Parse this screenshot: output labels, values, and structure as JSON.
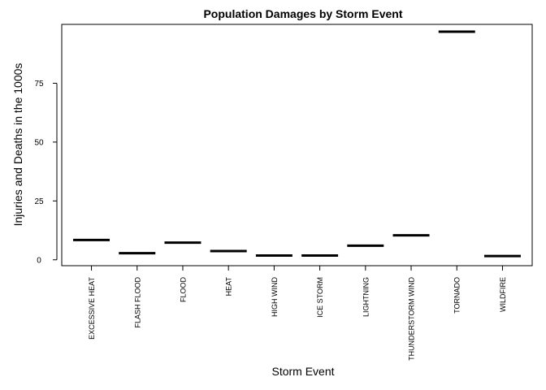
{
  "chart_data": {
    "type": "bar",
    "style": "horizontal segment per category (median line)",
    "title": "Population Damages by Storm Event",
    "xlabel": "Storm Event",
    "ylabel": "Injuries and Deaths in the 1000s",
    "ylim": [
      -2.5,
      100
    ],
    "yticks": [
      0,
      25,
      50,
      75
    ],
    "grid": false,
    "legend": "none",
    "categories": [
      "EXCESSIVE HEAT",
      "FLASH FLOOD",
      "FLOOD",
      "HEAT",
      "HIGH WIND",
      "ICE STORM",
      "LIGHTNING",
      "THUNDERSTORM WIND",
      "TORNADO",
      "WILDFIRE"
    ],
    "values": [
      8.4,
      2.8,
      7.3,
      3.7,
      1.8,
      1.8,
      6.0,
      10.4,
      96.9,
      1.6
    ],
    "colors": {
      "line": "#000000",
      "axis": "#000000",
      "background": "#ffffff"
    }
  }
}
